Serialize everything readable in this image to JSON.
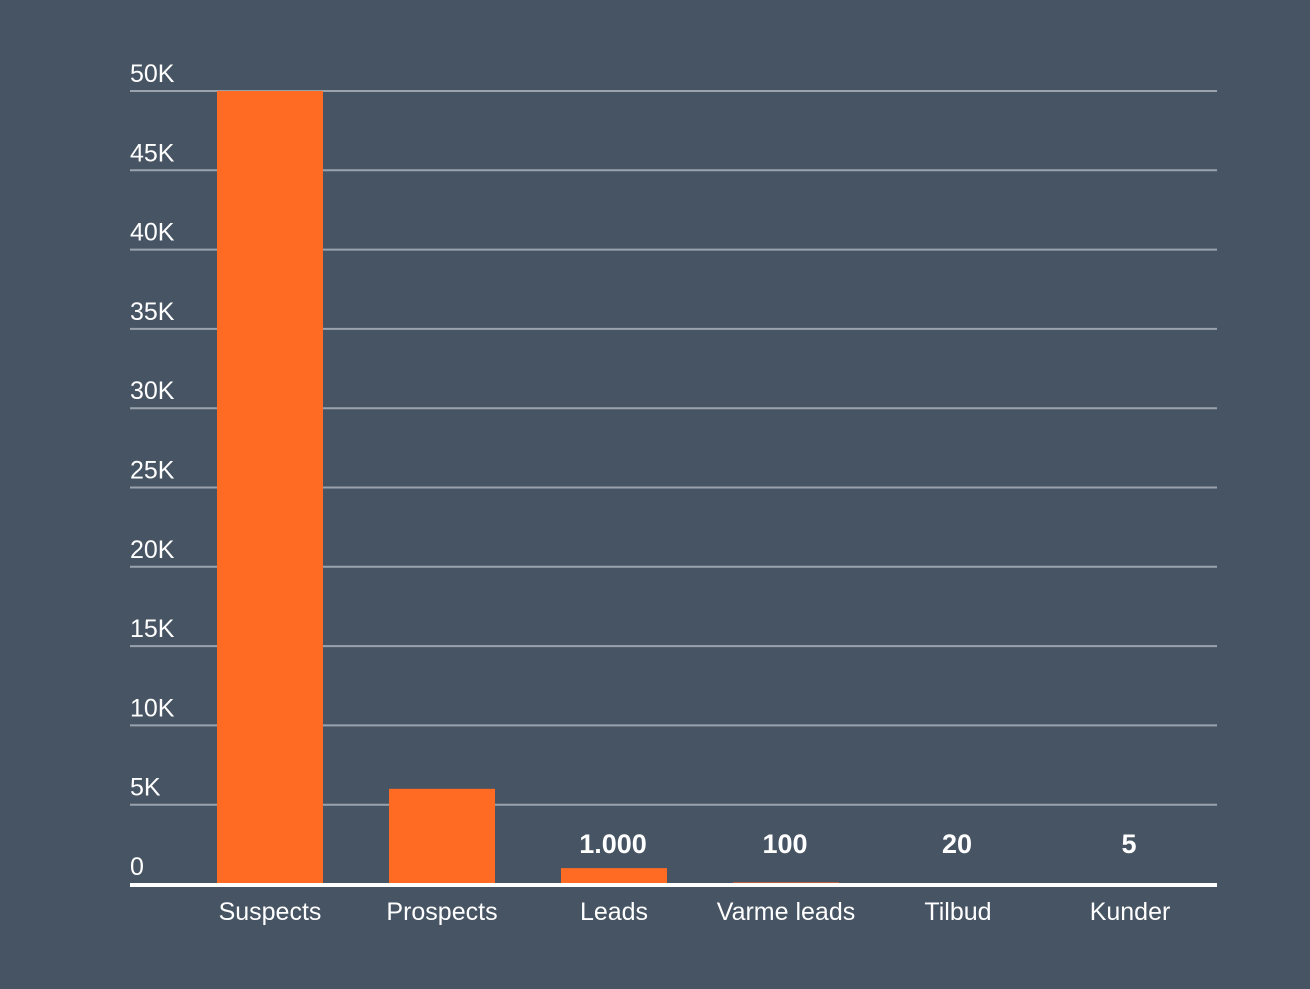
{
  "colors": {
    "background": "#475464",
    "bar": "#ff6b23",
    "gridline": "#9aa3ad",
    "baseline": "#ffffff",
    "text": "#ffffff"
  },
  "chart_data": {
    "type": "bar",
    "title": "",
    "xlabel": "",
    "ylabel": "",
    "categories": [
      "Suspects",
      "Prospects",
      "Leads",
      "Varme leads",
      "Tilbud",
      "Kunder"
    ],
    "values": [
      50000,
      6000,
      1000,
      100,
      20,
      5
    ],
    "data_labels": [
      "",
      "",
      "1.000",
      "100",
      "20",
      "5"
    ],
    "ylim": [
      0,
      50000
    ],
    "yticks": [
      0,
      5000,
      10000,
      15000,
      20000,
      25000,
      30000,
      35000,
      40000,
      45000,
      50000
    ],
    "ytick_labels": [
      "0",
      "5K",
      "10K",
      "15K",
      "20K",
      "25K",
      "30K",
      "35K",
      "40K",
      "45K",
      "50K"
    ],
    "grid": true,
    "legend": "none"
  }
}
